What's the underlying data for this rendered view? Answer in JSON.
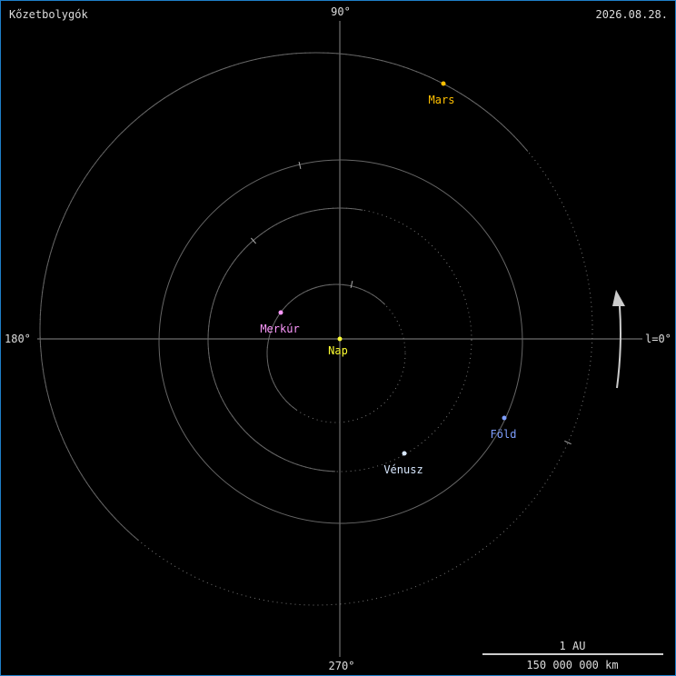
{
  "title": "Kőzetbolygók",
  "date": "2026.08.28.",
  "axis_labels": {
    "top": "90°",
    "left": "180°",
    "right": "l=0°",
    "bottom": "270°"
  },
  "scale": {
    "top": "1 AU",
    "bottom": "150 000 000 km"
  },
  "colors": {
    "orbit": "#666666",
    "axis": "#888888",
    "text": "#dddddd",
    "border": "#1e7fc8"
  },
  "sun": {
    "name": "Nap",
    "color": "#ffff33"
  },
  "planets": [
    {
      "name": "Merkúr",
      "color": "#ff99ff"
    },
    {
      "name": "Vénusz",
      "color": "#d8e8ff"
    },
    {
      "name": "Föld",
      "color": "#7f9fff"
    },
    {
      "name": "Mars",
      "color": "#ffc000"
    }
  ],
  "direction_arrow": "counterclockwise-arrow-icon"
}
